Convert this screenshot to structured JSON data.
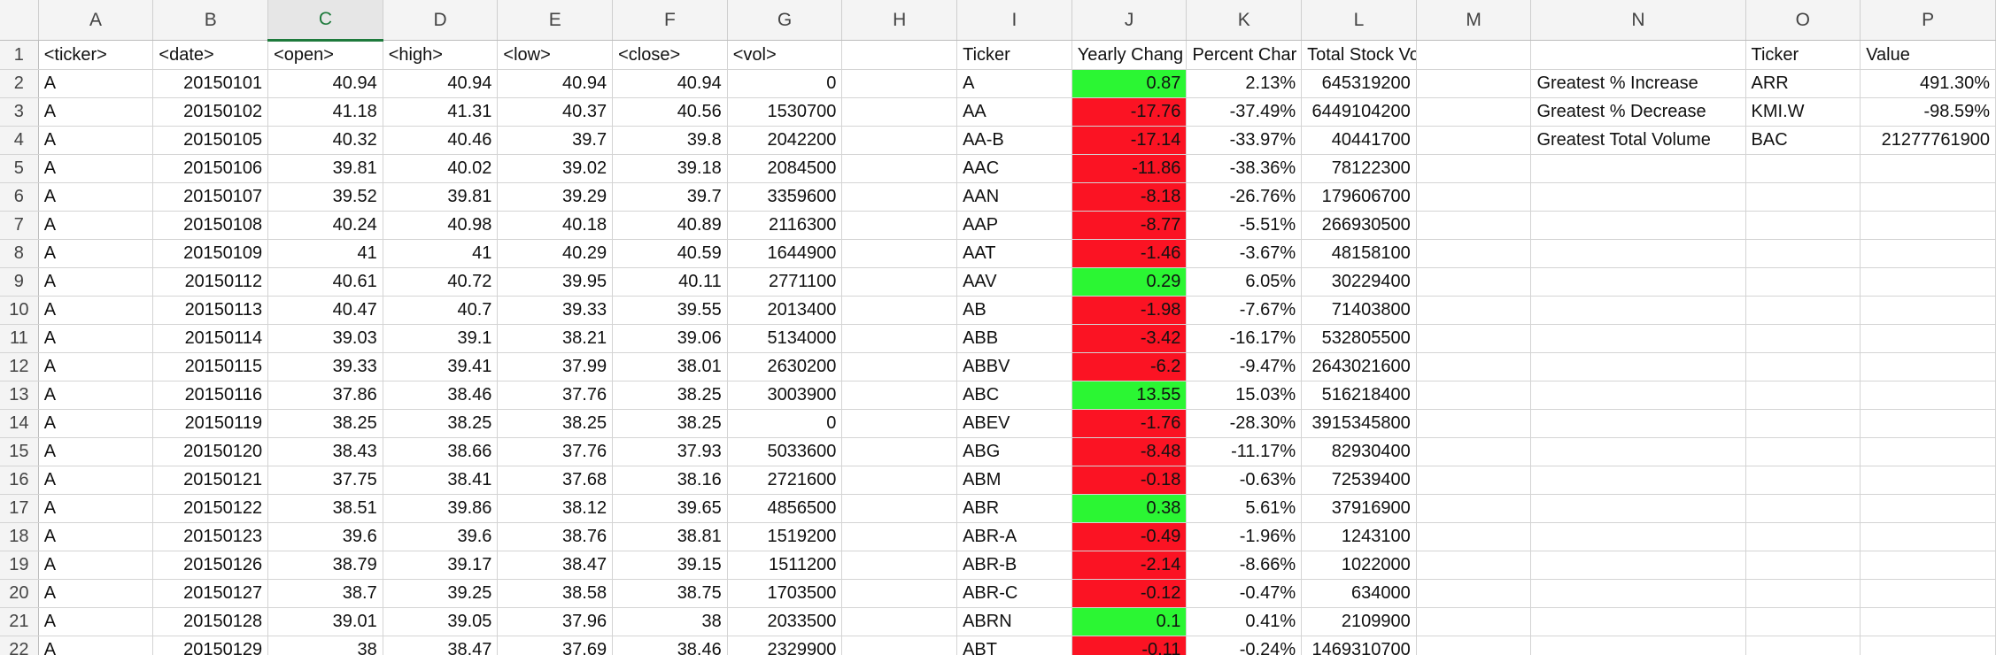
{
  "columns": [
    "A",
    "B",
    "C",
    "D",
    "E",
    "F",
    "G",
    "H",
    "I",
    "J",
    "K",
    "L",
    "M",
    "N",
    "O",
    "P"
  ],
  "selected_column": "C",
  "row_numbers": [
    "1",
    "2",
    "3",
    "4",
    "5",
    "6",
    "7",
    "8",
    "9",
    "10",
    "11",
    "12",
    "13",
    "14",
    "15",
    "16",
    "17",
    "18",
    "19",
    "20",
    "21",
    "22"
  ],
  "header_row": {
    "A": "<ticker>",
    "B": "<date>",
    "C": "<open>",
    "D": "<high>",
    "E": "<low>",
    "F": "<close>",
    "G": "<vol>",
    "H": "",
    "I": "Ticker",
    "J": "Yearly Chang",
    "K": "Percent Char",
    "L": "Total Stock Volume",
    "M": "",
    "N": "",
    "O": "Ticker",
    "P": "Value"
  },
  "colors": {
    "positive": "#2bf633",
    "negative": "#fb1323",
    "selected_header": "#1e7a3c"
  },
  "rows": [
    {
      "A": "A",
      "B": "20150101",
      "C": "40.94",
      "D": "40.94",
      "E": "40.94",
      "F": "40.94",
      "G": "0",
      "I": "A",
      "J": "0.87",
      "K": "2.13%",
      "L": "645319200",
      "N": "Greatest % Increase",
      "O": "ARR",
      "P": "491.30%"
    },
    {
      "A": "A",
      "B": "20150102",
      "C": "41.18",
      "D": "41.31",
      "E": "40.37",
      "F": "40.56",
      "G": "1530700",
      "I": "AA",
      "J": "-17.76",
      "K": "-37.49%",
      "L": "6449104200",
      "N": "Greatest % Decrease",
      "O": "KMI.W",
      "P": "-98.59%"
    },
    {
      "A": "A",
      "B": "20150105",
      "C": "40.32",
      "D": "40.46",
      "E": "39.7",
      "F": "39.8",
      "G": "2042200",
      "I": "AA-B",
      "J": "-17.14",
      "K": "-33.97%",
      "L": "40441700",
      "N": "Greatest Total Volume",
      "O": "BAC",
      "P": "21277761900"
    },
    {
      "A": "A",
      "B": "20150106",
      "C": "39.81",
      "D": "40.02",
      "E": "39.02",
      "F": "39.18",
      "G": "2084500",
      "I": "AAC",
      "J": "-11.86",
      "K": "-38.36%",
      "L": "78122300"
    },
    {
      "A": "A",
      "B": "20150107",
      "C": "39.52",
      "D": "39.81",
      "E": "39.29",
      "F": "39.7",
      "G": "3359600",
      "I": "AAN",
      "J": "-8.18",
      "K": "-26.76%",
      "L": "179606700"
    },
    {
      "A": "A",
      "B": "20150108",
      "C": "40.24",
      "D": "40.98",
      "E": "40.18",
      "F": "40.89",
      "G": "2116300",
      "I": "AAP",
      "J": "-8.77",
      "K": "-5.51%",
      "L": "266930500"
    },
    {
      "A": "A",
      "B": "20150109",
      "C": "41",
      "D": "41",
      "E": "40.29",
      "F": "40.59",
      "G": "1644900",
      "I": "AAT",
      "J": "-1.46",
      "K": "-3.67%",
      "L": "48158100"
    },
    {
      "A": "A",
      "B": "20150112",
      "C": "40.61",
      "D": "40.72",
      "E": "39.95",
      "F": "40.11",
      "G": "2771100",
      "I": "AAV",
      "J": "0.29",
      "K": "6.05%",
      "L": "30229400"
    },
    {
      "A": "A",
      "B": "20150113",
      "C": "40.47",
      "D": "40.7",
      "E": "39.33",
      "F": "39.55",
      "G": "2013400",
      "I": "AB",
      "J": "-1.98",
      "K": "-7.67%",
      "L": "71403800"
    },
    {
      "A": "A",
      "B": "20150114",
      "C": "39.03",
      "D": "39.1",
      "E": "38.21",
      "F": "39.06",
      "G": "5134000",
      "I": "ABB",
      "J": "-3.42",
      "K": "-16.17%",
      "L": "532805500"
    },
    {
      "A": "A",
      "B": "20150115",
      "C": "39.33",
      "D": "39.41",
      "E": "37.99",
      "F": "38.01",
      "G": "2630200",
      "I": "ABBV",
      "J": "-6.2",
      "K": "-9.47%",
      "L": "2643021600"
    },
    {
      "A": "A",
      "B": "20150116",
      "C": "37.86",
      "D": "38.46",
      "E": "37.76",
      "F": "38.25",
      "G": "3003900",
      "I": "ABC",
      "J": "13.55",
      "K": "15.03%",
      "L": "516218400"
    },
    {
      "A": "A",
      "B": "20150119",
      "C": "38.25",
      "D": "38.25",
      "E": "38.25",
      "F": "38.25",
      "G": "0",
      "I": "ABEV",
      "J": "-1.76",
      "K": "-28.30%",
      "L": "3915345800"
    },
    {
      "A": "A",
      "B": "20150120",
      "C": "38.43",
      "D": "38.66",
      "E": "37.76",
      "F": "37.93",
      "G": "5033600",
      "I": "ABG",
      "J": "-8.48",
      "K": "-11.17%",
      "L": "82930400"
    },
    {
      "A": "A",
      "B": "20150121",
      "C": "37.75",
      "D": "38.41",
      "E": "37.68",
      "F": "38.16",
      "G": "2721600",
      "I": "ABM",
      "J": "-0.18",
      "K": "-0.63%",
      "L": "72539400"
    },
    {
      "A": "A",
      "B": "20150122",
      "C": "38.51",
      "D": "39.86",
      "E": "38.12",
      "F": "39.65",
      "G": "4856500",
      "I": "ABR",
      "J": "0.38",
      "K": "5.61%",
      "L": "37916900"
    },
    {
      "A": "A",
      "B": "20150123",
      "C": "39.6",
      "D": "39.6",
      "E": "38.76",
      "F": "38.81",
      "G": "1519200",
      "I": "ABR-A",
      "J": "-0.49",
      "K": "-1.96%",
      "L": "1243100"
    },
    {
      "A": "A",
      "B": "20150126",
      "C": "38.79",
      "D": "39.17",
      "E": "38.47",
      "F": "39.15",
      "G": "1511200",
      "I": "ABR-B",
      "J": "-2.14",
      "K": "-8.66%",
      "L": "1022000"
    },
    {
      "A": "A",
      "B": "20150127",
      "C": "38.7",
      "D": "39.25",
      "E": "38.58",
      "F": "38.75",
      "G": "1703500",
      "I": "ABR-C",
      "J": "-0.12",
      "K": "-0.47%",
      "L": "634000"
    },
    {
      "A": "A",
      "B": "20150128",
      "C": "39.01",
      "D": "39.05",
      "E": "37.96",
      "F": "38",
      "G": "2033500",
      "I": "ABRN",
      "J": "0.1",
      "K": "0.41%",
      "L": "2109900"
    },
    {
      "A": "A",
      "B": "20150129",
      "C": "38",
      "D": "38.47",
      "E": "37.69",
      "F": "38.46",
      "G": "2329900",
      "I": "ABT",
      "J": "-0.11",
      "K": "-0.24%",
      "L": "1469310700"
    }
  ]
}
